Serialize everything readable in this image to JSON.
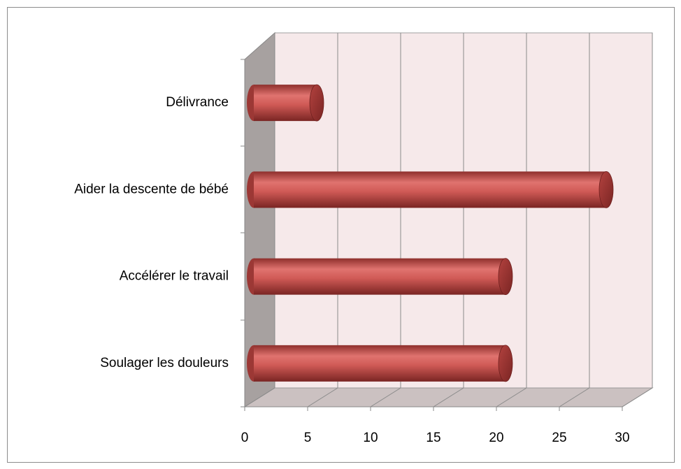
{
  "chart_data": {
    "type": "bar3d_horizontal",
    "categories": [
      "Soulager les douleurs",
      "Accélérer le travail",
      "Aider la descente de bébé",
      "Délivrance"
    ],
    "values": [
      20,
      20,
      28,
      5
    ],
    "color": "#c0504d",
    "xlim": [
      0,
      30
    ],
    "xticks": [
      0,
      5,
      10,
      15,
      20,
      25,
      30
    ],
    "grid": true
  }
}
